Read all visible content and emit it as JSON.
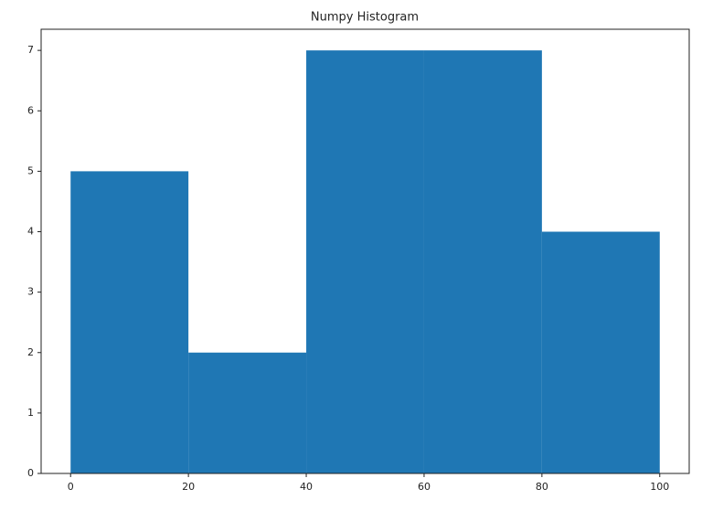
{
  "chart_data": {
    "type": "histogram",
    "title": "Numpy Histogram",
    "bins": [
      0,
      20,
      40,
      60,
      80,
      100
    ],
    "values": [
      5,
      2,
      7,
      7,
      4
    ],
    "color": "#1f77b4",
    "xlim": [
      -5,
      105
    ],
    "xticks": [
      0,
      20,
      40,
      60,
      80,
      100
    ],
    "ylim": [
      0,
      7.35
    ],
    "yticks": [
      0,
      1,
      2,
      3,
      4,
      5,
      6,
      7
    ],
    "grid": false
  }
}
